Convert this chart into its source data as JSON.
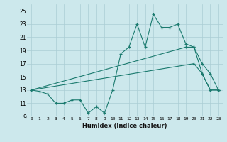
{
  "xlabel": "Humidex (Indice chaleur)",
  "bg_color": "#cce8ec",
  "grid_color": "#aacdd4",
  "line_color": "#1a7a6e",
  "xlim": [
    -0.5,
    23.5
  ],
  "ylim": [
    9,
    26
  ],
  "yticks": [
    9,
    11,
    13,
    15,
    17,
    19,
    21,
    23,
    25
  ],
  "xticks": [
    0,
    1,
    2,
    3,
    4,
    5,
    6,
    7,
    8,
    9,
    10,
    11,
    12,
    13,
    14,
    15,
    16,
    17,
    18,
    19,
    20,
    21,
    22,
    23
  ],
  "line1_x": [
    0,
    1,
    2,
    3,
    4,
    5,
    6,
    7,
    8,
    9,
    10,
    11,
    12,
    13,
    14,
    15,
    16,
    17,
    18,
    19,
    20,
    21,
    22,
    23
  ],
  "line1_y": [
    13.0,
    12.8,
    12.4,
    11.0,
    11.0,
    11.5,
    11.5,
    9.5,
    10.5,
    9.5,
    13.0,
    18.5,
    19.5,
    23.0,
    19.5,
    24.5,
    22.5,
    22.5,
    23.0,
    20.0,
    19.5,
    17.0,
    15.5,
    13.0
  ],
  "line2_x": [
    0,
    20,
    21,
    22,
    23
  ],
  "line2_y": [
    13.0,
    17.0,
    15.5,
    13.0,
    13.0
  ],
  "line3_x": [
    0,
    19,
    20,
    21,
    22,
    23
  ],
  "line3_y": [
    13.0,
    19.5,
    19.5,
    15.5,
    13.0,
    13.0
  ]
}
